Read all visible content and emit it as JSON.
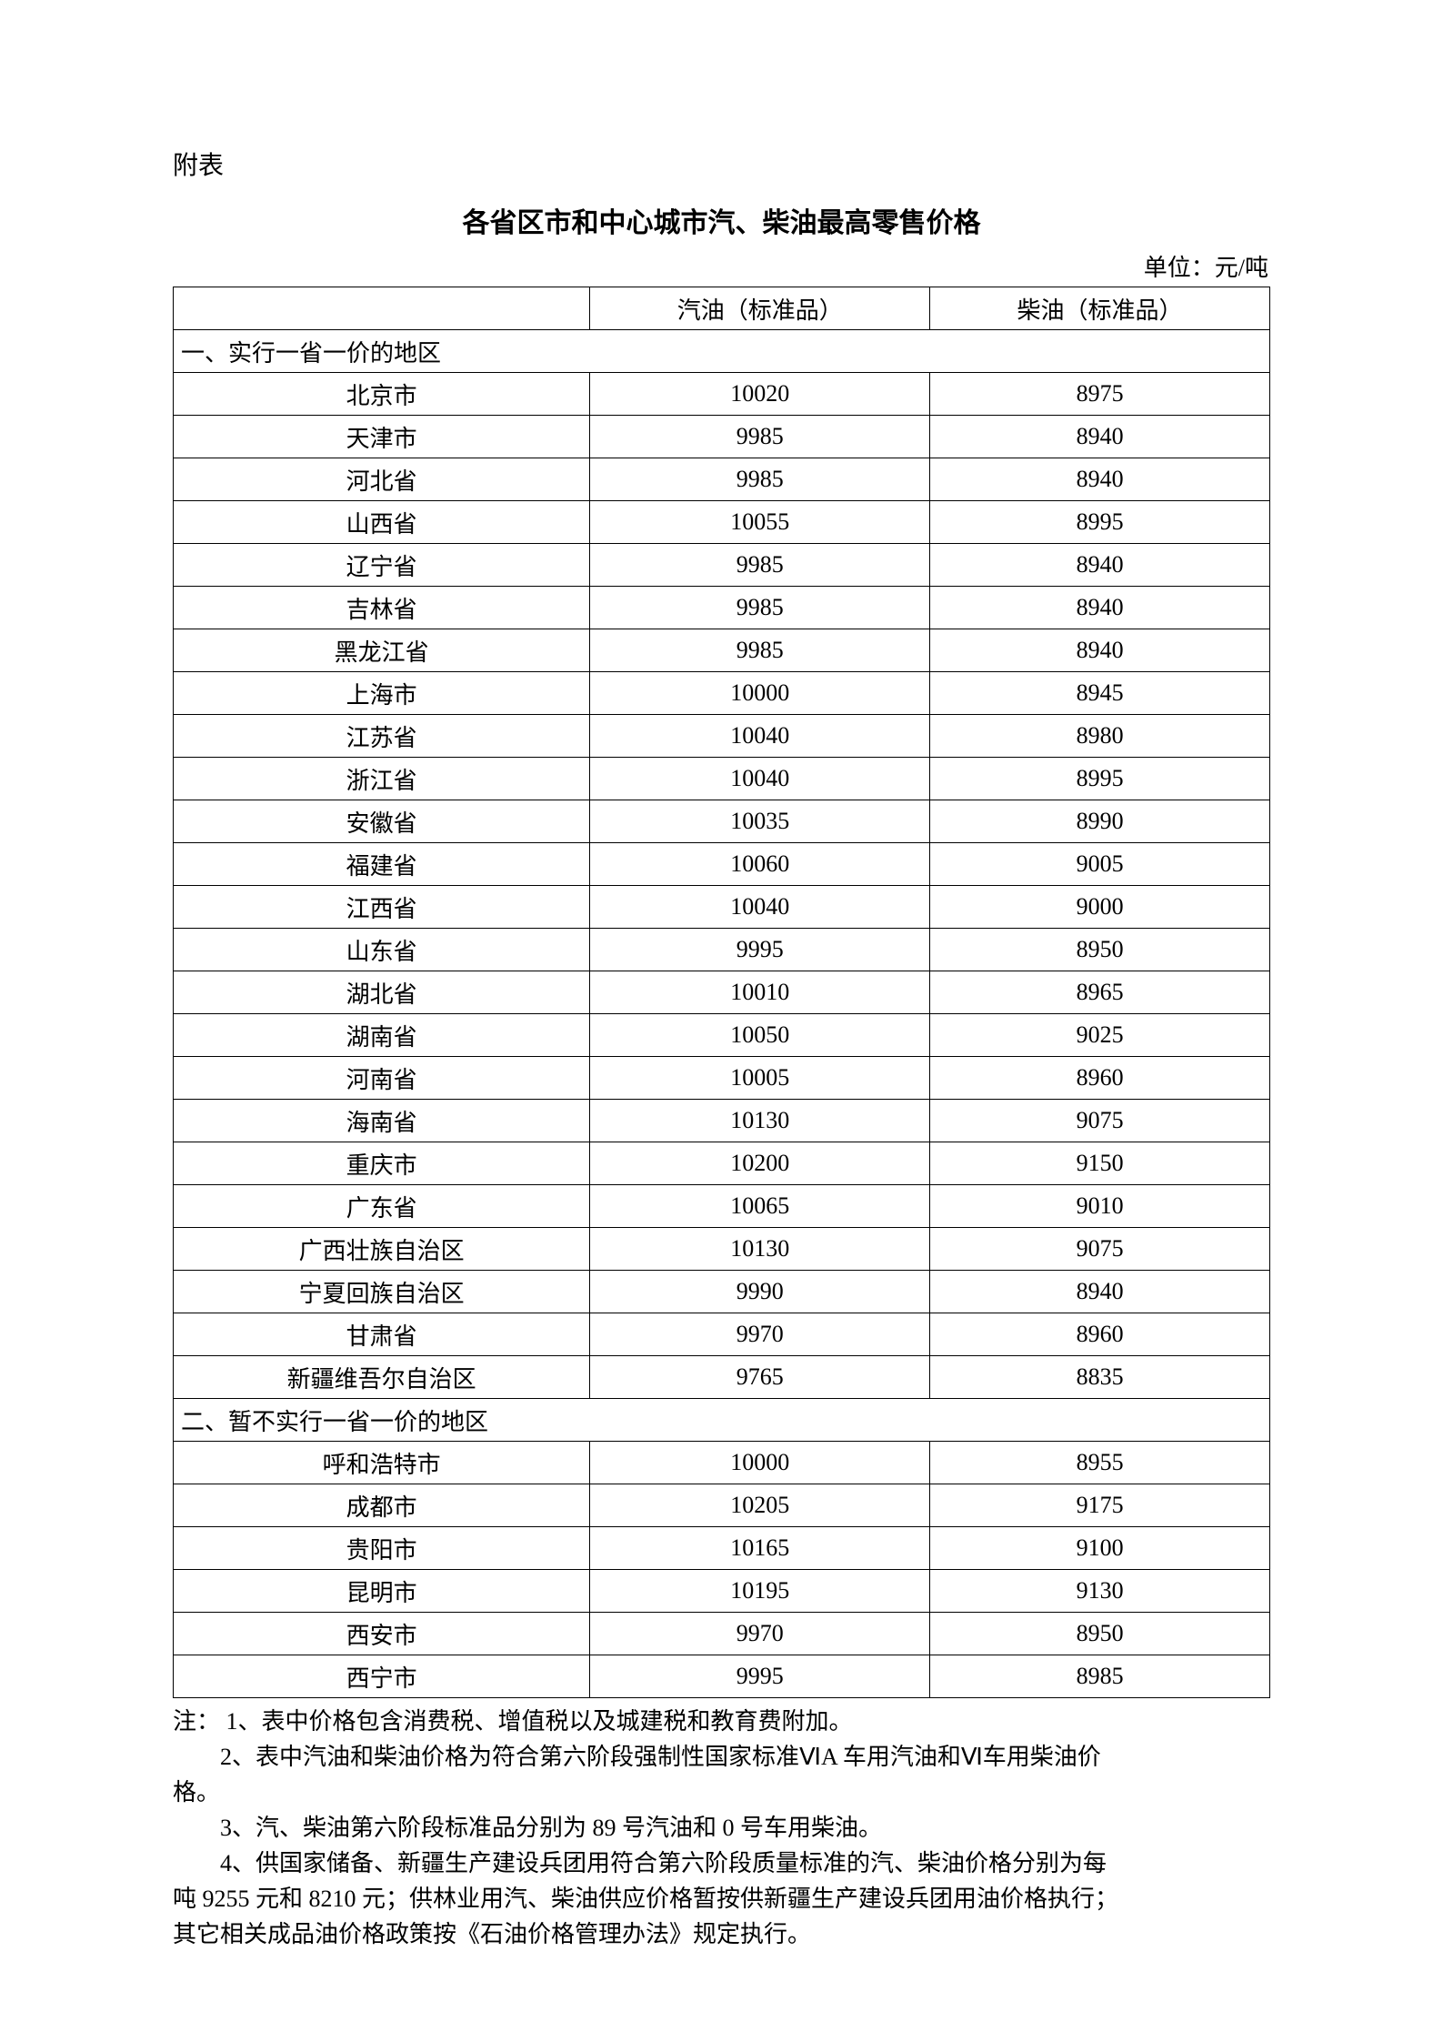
{
  "attach_label": "附表",
  "title": "各省区市和中心城市汽、柴油最高零售价格",
  "unit": "单位：元/吨",
  "headers": {
    "region": "",
    "gasoline": "汽油（标准品）",
    "diesel": "柴油（标准品）"
  },
  "section1_label": "一、实行一省一价的地区",
  "section2_label": "二、暂不实行一省一价的地区",
  "rows1": [
    {
      "region": "北京市",
      "gas": "10020",
      "diesel": "8975"
    },
    {
      "region": "天津市",
      "gas": "9985",
      "diesel": "8940"
    },
    {
      "region": "河北省",
      "gas": "9985",
      "diesel": "8940"
    },
    {
      "region": "山西省",
      "gas": "10055",
      "diesel": "8995"
    },
    {
      "region": "辽宁省",
      "gas": "9985",
      "diesel": "8940"
    },
    {
      "region": "吉林省",
      "gas": "9985",
      "diesel": "8940"
    },
    {
      "region": "黑龙江省",
      "gas": "9985",
      "diesel": "8940"
    },
    {
      "region": "上海市",
      "gas": "10000",
      "diesel": "8945"
    },
    {
      "region": "江苏省",
      "gas": "10040",
      "diesel": "8980"
    },
    {
      "region": "浙江省",
      "gas": "10040",
      "diesel": "8995"
    },
    {
      "region": "安徽省",
      "gas": "10035",
      "diesel": "8990"
    },
    {
      "region": "福建省",
      "gas": "10060",
      "diesel": "9005"
    },
    {
      "region": "江西省",
      "gas": "10040",
      "diesel": "9000"
    },
    {
      "region": "山东省",
      "gas": "9995",
      "diesel": "8950"
    },
    {
      "region": "湖北省",
      "gas": "10010",
      "diesel": "8965"
    },
    {
      "region": "湖南省",
      "gas": "10050",
      "diesel": "9025"
    },
    {
      "region": "河南省",
      "gas": "10005",
      "diesel": "8960"
    },
    {
      "region": "海南省",
      "gas": "10130",
      "diesel": "9075"
    },
    {
      "region": "重庆市",
      "gas": "10200",
      "diesel": "9150"
    },
    {
      "region": "广东省",
      "gas": "10065",
      "diesel": "9010"
    },
    {
      "region": "广西壮族自治区",
      "gas": "10130",
      "diesel": "9075"
    },
    {
      "region": "宁夏回族自治区",
      "gas": "9990",
      "diesel": "8940"
    },
    {
      "region": "甘肃省",
      "gas": "9970",
      "diesel": "8960"
    },
    {
      "region": "新疆维吾尔自治区",
      "gas": "9765",
      "diesel": "8835"
    }
  ],
  "rows2": [
    {
      "region": "呼和浩特市",
      "gas": "10000",
      "diesel": "8955"
    },
    {
      "region": "成都市",
      "gas": "10205",
      "diesel": "9175"
    },
    {
      "region": "贵阳市",
      "gas": "10165",
      "diesel": "9100"
    },
    {
      "region": "昆明市",
      "gas": "10195",
      "diesel": "9130"
    },
    {
      "region": "西安市",
      "gas": "9970",
      "diesel": "8950"
    },
    {
      "region": "西宁市",
      "gas": "9995",
      "diesel": "8985"
    }
  ],
  "notes": {
    "l1": "注：  1、表中价格包含消费税、增值税以及城建税和教育费附加。",
    "l2a": "2、表中汽油和柴油价格为符合第六阶段强制性国家标准ⅥA 车用汽油和Ⅵ车用柴油价",
    "l2b": "格。",
    "l3": "3、汽、柴油第六阶段标准品分别为 89 号汽油和 0 号车用柴油。",
    "l4a": "4、供国家储备、新疆生产建设兵团用符合第六阶段质量标准的汽、柴油价格分别为每",
    "l4b": "吨 9255 元和 8210 元；供林业用汽、柴油供应价格暂按供新疆生产建设兵团用油价格执行；",
    "l4c": "其它相关成品油价格政策按《石油价格管理办法》规定执行。"
  },
  "table_style": {
    "border_color": "#000000",
    "font_size_pt": 20,
    "background": "#ffffff"
  }
}
